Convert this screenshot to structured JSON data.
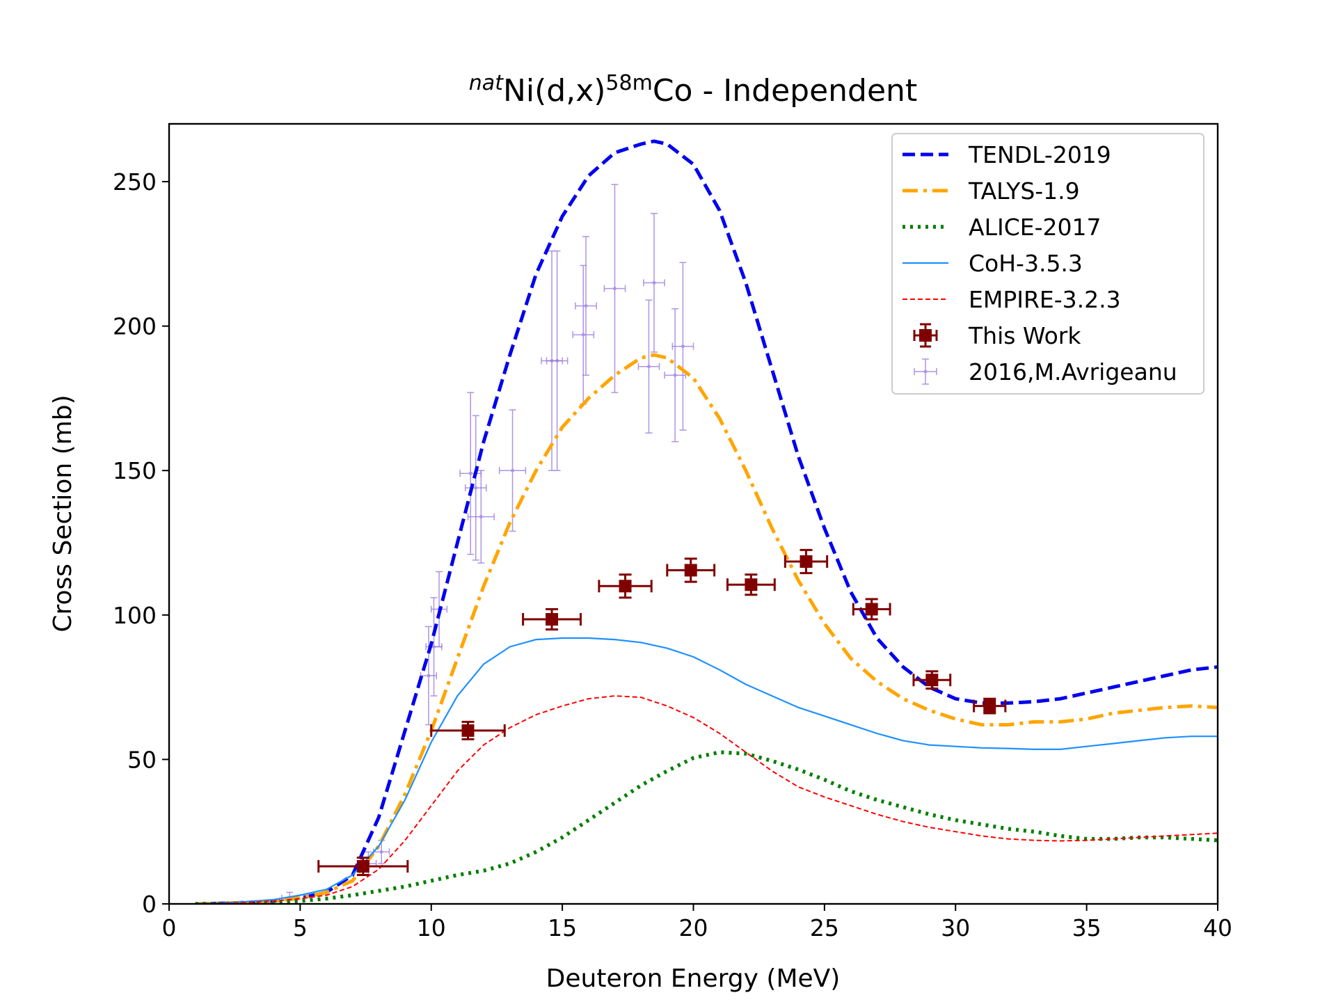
{
  "chart_data": {
    "type": "line",
    "title": {
      "prefix_sup": "nat",
      "main": "Ni(d,x)",
      "mass_sup": "58m",
      "suffix": "Co - Independent"
    },
    "xlabel": "Deuteron Energy (MeV)",
    "ylabel": "Cross Section (mb)",
    "xlim": [
      0,
      40
    ],
    "ylim": [
      0,
      270
    ],
    "xticks": [
      0,
      5,
      10,
      15,
      20,
      25,
      30,
      35,
      40
    ],
    "yticks": [
      0,
      50,
      100,
      150,
      200,
      250
    ],
    "grid": false,
    "legend_position": "top-right",
    "colors": {
      "tendl": "#0000ee",
      "talys": "#ffa500",
      "alice": "#007f00",
      "coh": "#1e90ff",
      "empire": "#ff0000",
      "this_work": "#800000",
      "avrigeanu": "#9370db"
    },
    "series": [
      {
        "name": "TENDL-2019",
        "key": "tendl",
        "style": "dashed",
        "x": [
          1,
          2,
          3,
          4,
          5,
          6,
          7,
          8,
          9,
          10,
          11,
          12,
          13,
          14,
          15,
          16,
          17,
          18,
          18.5,
          19,
          20,
          21,
          22,
          23,
          24,
          25,
          26,
          27,
          28,
          29,
          30,
          31,
          32,
          33,
          34,
          35,
          36,
          37,
          38,
          39,
          40
        ],
        "y": [
          0,
          0.2,
          0.5,
          1,
          2,
          4,
          10,
          30,
          60,
          90,
          125,
          160,
          190,
          218,
          238,
          252,
          260,
          263,
          264,
          263,
          256,
          240,
          215,
          185,
          155,
          130,
          108,
          92,
          82,
          75,
          71,
          69.5,
          69.5,
          70,
          71,
          73,
          75,
          77,
          79,
          81,
          82
        ]
      },
      {
        "name": "TALYS-1.9",
        "key": "talys",
        "style": "dashdot",
        "x": [
          1,
          2,
          3,
          4,
          5,
          6,
          7,
          8,
          9,
          10,
          11,
          12,
          13,
          14,
          15,
          16,
          17,
          18,
          18.5,
          19,
          20,
          21,
          22,
          23,
          24,
          25,
          26,
          27,
          28,
          29,
          30,
          31,
          32,
          33,
          34,
          35,
          36,
          37,
          38,
          39,
          40
        ],
        "y": [
          0,
          0.2,
          0.5,
          1,
          2,
          4,
          8,
          20,
          38,
          60,
          85,
          110,
          132,
          150,
          165,
          175,
          183,
          189,
          190,
          189,
          182,
          168,
          150,
          130,
          112,
          97,
          85,
          77,
          71,
          67,
          64,
          62,
          62,
          63,
          63,
          64,
          66,
          67,
          68,
          68.5,
          68
        ]
      },
      {
        "name": "ALICE-2017",
        "key": "alice",
        "style": "dotted",
        "x": [
          1,
          2,
          3,
          4,
          5,
          6,
          7,
          8,
          9,
          10,
          11,
          12,
          13,
          14,
          15,
          16,
          17,
          18,
          19,
          20,
          21,
          22,
          23,
          24,
          25,
          26,
          27,
          28,
          29,
          30,
          31,
          32,
          33,
          34,
          35,
          36,
          37,
          38,
          39,
          40
        ],
        "y": [
          0,
          0.1,
          0.3,
          0.5,
          1,
          1.8,
          3,
          4.5,
          6,
          8,
          10,
          11.5,
          14,
          18,
          23,
          29,
          35,
          41,
          46,
          50.5,
          52.5,
          52,
          49.5,
          46.5,
          43,
          39,
          36,
          33.5,
          31,
          29,
          27.5,
          26,
          25,
          23.5,
          22.5,
          22.5,
          23,
          23,
          22.5,
          22
        ]
      },
      {
        "name": "CoH-3.5.3",
        "key": "coh",
        "style": "solid",
        "x": [
          1,
          2,
          3,
          4,
          5,
          6,
          7,
          8,
          9,
          10,
          11,
          12,
          13,
          14,
          15,
          16,
          17,
          18,
          19,
          20,
          21,
          22,
          23,
          24,
          25,
          26,
          27,
          28,
          29,
          30,
          31,
          32,
          33,
          34,
          35,
          36,
          37,
          38,
          39,
          40
        ],
        "y": [
          0,
          0.3,
          0.8,
          1.5,
          3,
          5,
          10,
          20,
          36,
          56,
          72,
          83,
          89,
          91.5,
          92,
          92,
          91.5,
          90.5,
          88.5,
          85.5,
          81,
          76,
          72,
          68,
          65,
          62,
          59,
          56.5,
          55,
          54.5,
          54,
          53.8,
          53.5,
          53.5,
          54.5,
          55.5,
          56.5,
          57.5,
          58,
          58
        ]
      },
      {
        "name": "EMPIRE-3.2.3",
        "key": "empire",
        "style": "thin-dashed",
        "x": [
          1,
          2,
          3,
          4,
          5,
          6,
          7,
          8,
          9,
          10,
          11,
          12,
          13,
          14,
          15,
          16,
          17,
          18,
          19,
          20,
          21,
          22,
          23,
          24,
          25,
          26,
          27,
          28,
          29,
          30,
          31,
          32,
          33,
          34,
          35,
          36,
          37,
          38,
          39,
          40
        ],
        "y": [
          0,
          0.2,
          0.5,
          1,
          1.8,
          3,
          6,
          12,
          22,
          34,
          46,
          55,
          61,
          65.5,
          68.5,
          71,
          72,
          71.5,
          68.5,
          64.5,
          59,
          52.5,
          46,
          40.5,
          37,
          34,
          31,
          28.5,
          26.5,
          25,
          23.5,
          22.5,
          22,
          21.8,
          22,
          22.5,
          23,
          23.5,
          24,
          24.5
        ]
      }
    ],
    "this_work": {
      "name": "This Work",
      "x": [
        7.4,
        11.4,
        14.6,
        17.4,
        19.9,
        22.2,
        24.3,
        26.8,
        29.1,
        31.3
      ],
      "y": [
        13,
        60,
        98.5,
        110,
        115.5,
        110.5,
        118.5,
        102,
        77.5,
        68.5
      ],
      "xerr": [
        1.7,
        1.4,
        1.1,
        1.0,
        0.9,
        0.9,
        0.8,
        0.7,
        0.7,
        0.6
      ],
      "yerr": [
        3,
        3,
        3.5,
        4,
        4,
        3.5,
        4,
        3.5,
        3,
        2.5
      ]
    },
    "avrigeanu": {
      "name": "2016,M.Avrigeanu",
      "x": [
        4.6,
        7.6,
        8.1,
        9.9,
        10.1,
        10.3,
        11.5,
        11.7,
        11.9,
        13.1,
        14.6,
        14.8,
        15.8,
        15.9,
        17.0,
        18.3,
        18.5,
        19.3,
        19.6
      ],
      "y": [
        2,
        14,
        18,
        79,
        89,
        102,
        149,
        144,
        134,
        150,
        188,
        188,
        197,
        207,
        213,
        186,
        215,
        183,
        193
      ],
      "xerr": [
        0.3,
        0.3,
        0.3,
        0.3,
        0.3,
        0.3,
        0.4,
        0.4,
        0.5,
        0.5,
        0.4,
        0.4,
        0.4,
        0.4,
        0.4,
        0.4,
        0.4,
        0.4,
        0.4
      ],
      "yerr": [
        2,
        4,
        4,
        17,
        17,
        13,
        28,
        25,
        16,
        21,
        38,
        38,
        24,
        24,
        36,
        23,
        24,
        23,
        29
      ]
    }
  }
}
